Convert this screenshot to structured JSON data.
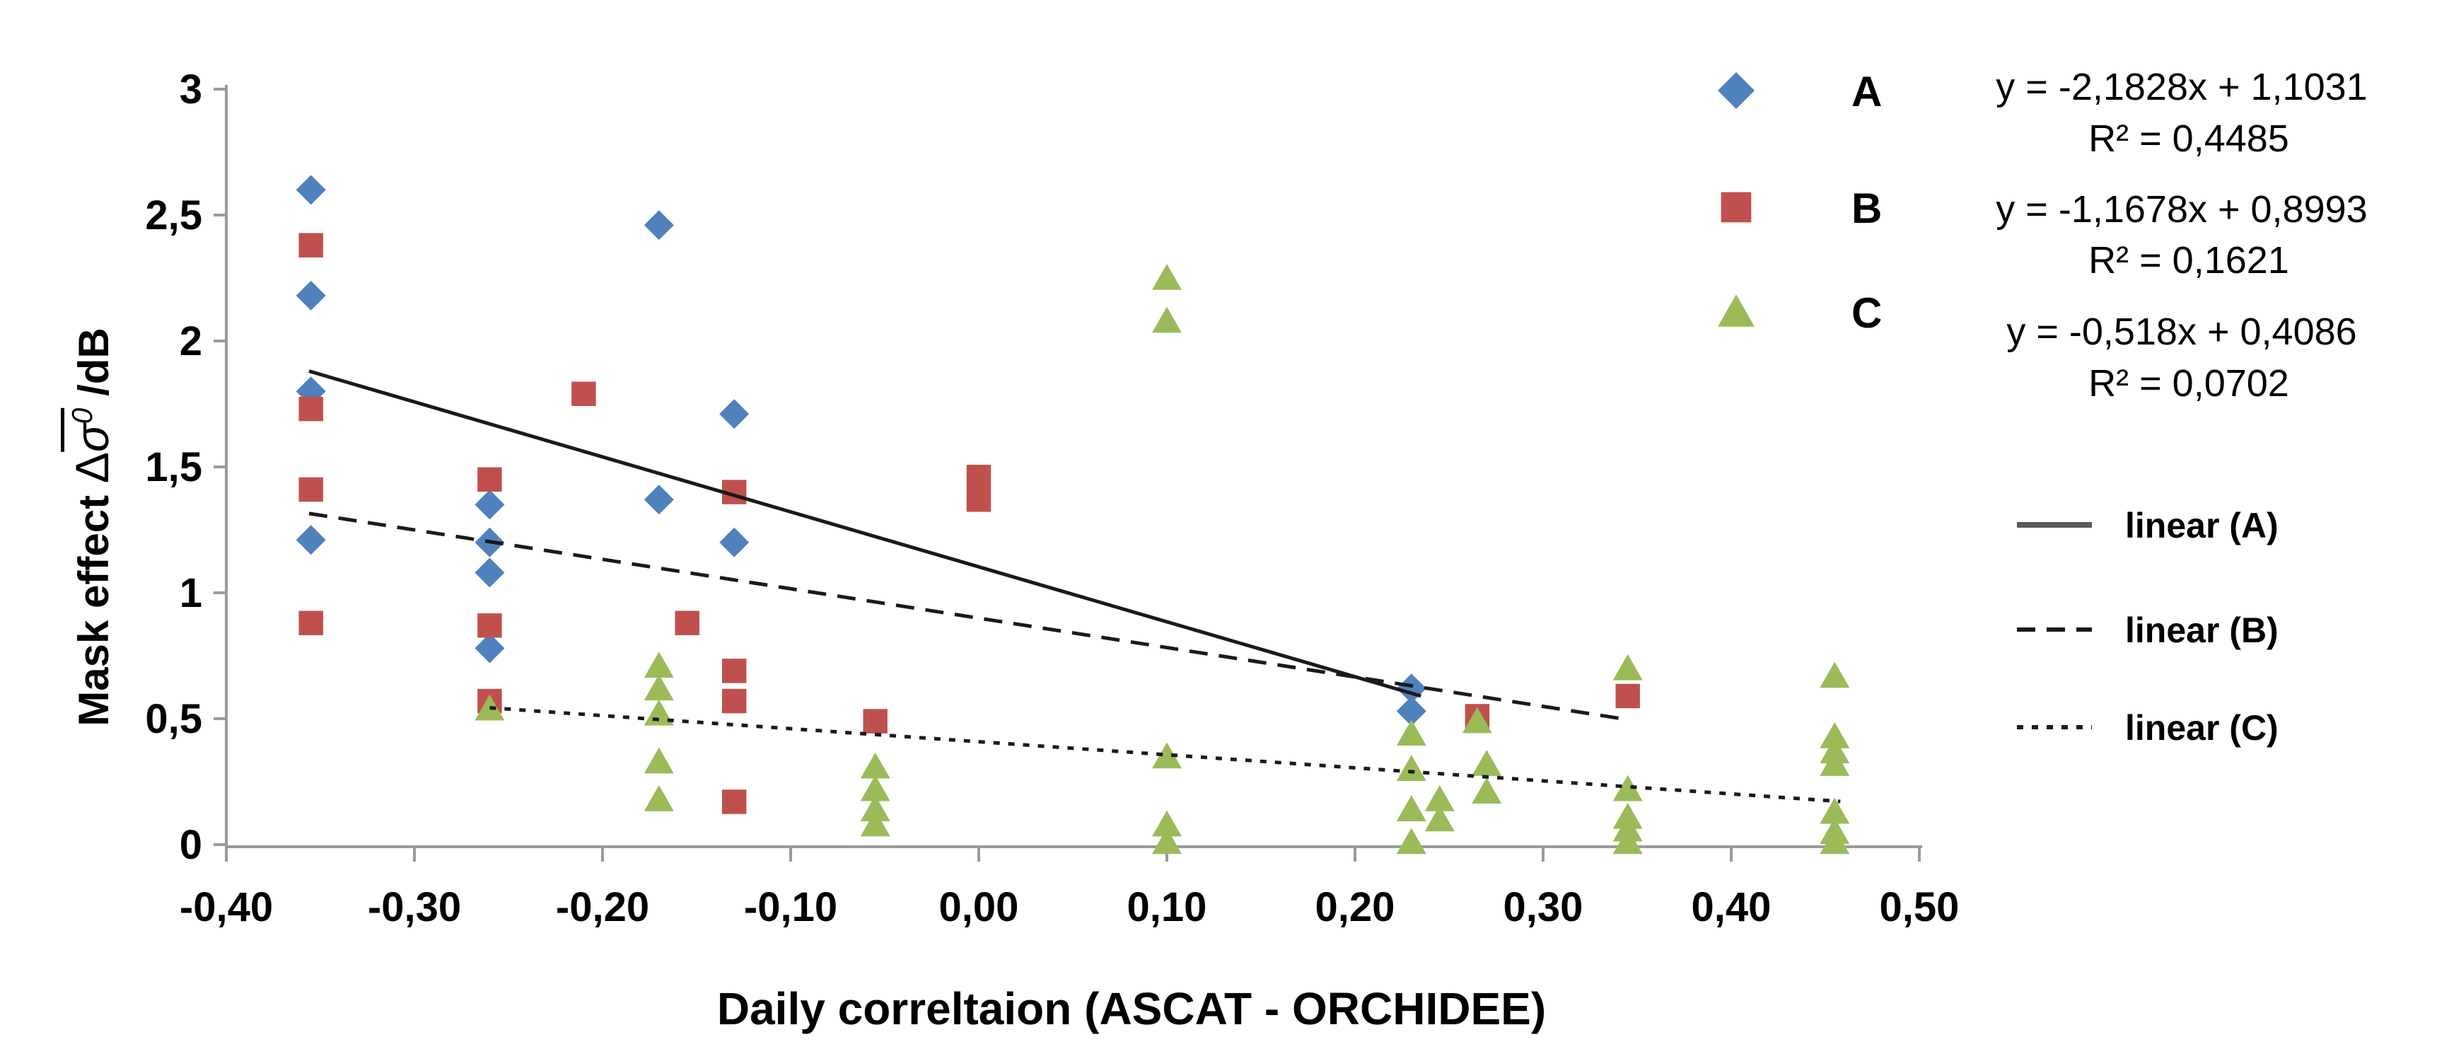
{
  "figure": {
    "y_axis_title_prefix": "Mask effect ",
    "y_axis_title_delta": "Δ",
    "y_axis_title_sigma": "σ",
    "y_axis_title_sup": "0",
    "y_axis_title_suffix": " /dB"
  },
  "chart_data": {
    "type": "scatter",
    "title": "",
    "xlabel": "Daily correltaion (ASCAT - ORCHIDEE)",
    "ylabel": "Mask effect Δσ0 /dB",
    "xlim": [
      -0.4,
      0.5
    ],
    "ylim": [
      0,
      3
    ],
    "grid": false,
    "legend_position": "right",
    "x_ticks": {
      "values": [
        -0.4,
        -0.3,
        -0.2,
        -0.1,
        0.0,
        0.1,
        0.2,
        0.3,
        0.4,
        0.5
      ],
      "labels": [
        "-0,40",
        "-0,30",
        "-0,20",
        "-0,10",
        "0,00",
        "0,10",
        "0,20",
        "0,30",
        "0,40",
        "0,50"
      ]
    },
    "y_ticks": {
      "values": [
        0,
        0.5,
        1,
        1.5,
        2,
        2.5,
        3
      ],
      "labels": [
        "0",
        "0,5",
        "1",
        "1,5",
        "2",
        "2,5",
        "3"
      ]
    },
    "series": [
      {
        "name": "A",
        "marker": "diamond",
        "color": "#4F81BD",
        "points": [
          [
            -0.355,
            2.6
          ],
          [
            -0.355,
            2.18
          ],
          [
            -0.355,
            1.8
          ],
          [
            -0.355,
            1.21
          ],
          [
            -0.26,
            1.35
          ],
          [
            -0.26,
            1.2
          ],
          [
            -0.26,
            1.08
          ],
          [
            -0.26,
            0.78
          ],
          [
            -0.17,
            2.46
          ],
          [
            -0.17,
            1.37
          ],
          [
            -0.13,
            1.71
          ],
          [
            -0.13,
            1.2
          ],
          [
            0.23,
            0.62
          ],
          [
            0.23,
            0.53
          ]
        ]
      },
      {
        "name": "B",
        "marker": "square",
        "color": "#C0504D",
        "points": [
          [
            -0.355,
            2.38
          ],
          [
            -0.355,
            1.73
          ],
          [
            -0.355,
            1.41
          ],
          [
            -0.355,
            0.88
          ],
          [
            -0.26,
            1.45
          ],
          [
            -0.26,
            0.87
          ],
          [
            -0.26,
            0.57
          ],
          [
            -0.21,
            1.79
          ],
          [
            -0.155,
            0.88
          ],
          [
            -0.13,
            1.4
          ],
          [
            -0.13,
            0.69
          ],
          [
            -0.13,
            0.57
          ],
          [
            -0.13,
            0.17
          ],
          [
            -0.055,
            0.49
          ],
          [
            0.0,
            1.46
          ],
          [
            0.0,
            1.37
          ],
          [
            0.265,
            0.51
          ],
          [
            0.345,
            0.59
          ]
        ]
      },
      {
        "name": "C",
        "marker": "triangle",
        "color": "#9BBB59",
        "points": [
          [
            -0.26,
            0.54
          ],
          [
            -0.17,
            0.71
          ],
          [
            -0.17,
            0.62
          ],
          [
            -0.17,
            0.52
          ],
          [
            -0.17,
            0.33
          ],
          [
            -0.17,
            0.18
          ],
          [
            -0.055,
            0.31
          ],
          [
            -0.055,
            0.22
          ],
          [
            -0.055,
            0.14
          ],
          [
            -0.055,
            0.08
          ],
          [
            0.1,
            2.25
          ],
          [
            0.1,
            2.08
          ],
          [
            0.1,
            0.35
          ],
          [
            0.1,
            0.08
          ],
          [
            0.1,
            0.01
          ],
          [
            0.23,
            0.44
          ],
          [
            0.23,
            0.3
          ],
          [
            0.23,
            0.14
          ],
          [
            0.23,
            0.01
          ],
          [
            0.245,
            0.18
          ],
          [
            0.245,
            0.1
          ],
          [
            0.265,
            0.49
          ],
          [
            0.27,
            0.32
          ],
          [
            0.27,
            0.21
          ],
          [
            0.345,
            0.7
          ],
          [
            0.345,
            0.22
          ],
          [
            0.345,
            0.11
          ],
          [
            0.345,
            0.06
          ],
          [
            0.345,
            0.01
          ],
          [
            0.455,
            0.67
          ],
          [
            0.455,
            0.43
          ],
          [
            0.455,
            0.37
          ],
          [
            0.455,
            0.32
          ],
          [
            0.455,
            0.13
          ],
          [
            0.455,
            0.05
          ],
          [
            0.455,
            0.01
          ]
        ]
      }
    ],
    "trendlines": [
      {
        "name": "linear (A)",
        "style": "solid",
        "slope": -2.1828,
        "intercept": 1.1031,
        "x_start": -0.356,
        "x_end": 0.235,
        "equation": "y = -2,1828x + 1,1031",
        "r2": "R² = 0,4485"
      },
      {
        "name": "linear (B)",
        "style": "dashed",
        "slope": -1.1678,
        "intercept": 0.8993,
        "x_start": -0.356,
        "x_end": 0.341,
        "equation": "y = -1,1678x + 0,8993",
        "r2": "R² = 0,1621"
      },
      {
        "name": "linear (C)",
        "style": "dotted",
        "slope": -0.518,
        "intercept": 0.4086,
        "x_start": -0.26,
        "x_end": 0.458,
        "equation": "y = -0,518x + 0,4086",
        "r2": "R² = 0,0702"
      }
    ],
    "colors": {
      "axis": "#9a9a9a",
      "trendline": "#1a1a1a",
      "trend_legend_solid": "#595959",
      "text": "#000000"
    }
  }
}
